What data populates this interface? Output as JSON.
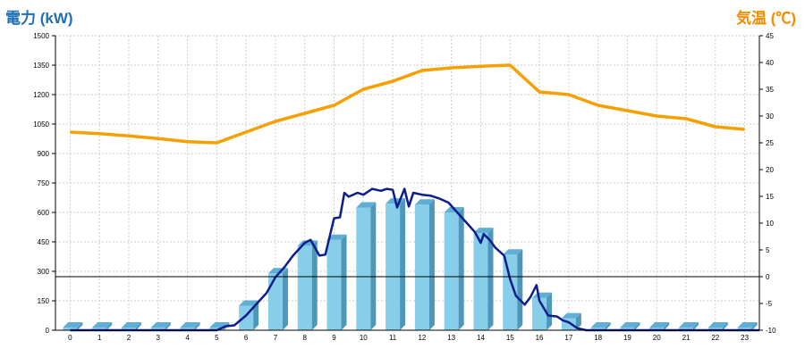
{
  "chart_data": {
    "type": "bar+line",
    "left_axis_title": "電力 (kW)",
    "right_axis_title": "気温 (℃)",
    "x": [
      "0",
      "1",
      "2",
      "3",
      "4",
      "5",
      "6",
      "7",
      "8",
      "9",
      "10",
      "11",
      "12",
      "13",
      "14",
      "15",
      "16",
      "17",
      "18",
      "19",
      "20",
      "21",
      "22",
      "23"
    ],
    "y_left_ticks": [
      "0",
      "150",
      "300",
      "450",
      "600",
      "750",
      "900",
      "1050",
      "1200",
      "1350",
      "1500"
    ],
    "y_right_ticks": [
      "-10",
      "-5",
      "0",
      "5",
      "10",
      "15",
      "20",
      "25",
      "30",
      "35",
      "40",
      "45"
    ],
    "ylim_left": [
      0,
      1500
    ],
    "ylim_right": [
      -10,
      45
    ],
    "grid": true,
    "reference_line_temp": 0,
    "colors": {
      "bar_front": "#87CEEB",
      "bar_side": "#4E97B8",
      "bar_top": "#5FAED6",
      "power_line": "#0B1E8C",
      "temp_line": "#F5A000",
      "left_title": "#1F6FB5",
      "right_title": "#F08C00"
    },
    "series": [
      {
        "type": "bar",
        "axis": "left",
        "values": [
          0,
          0,
          0,
          0,
          0,
          0,
          125,
          290,
          430,
          460,
          625,
          645,
          640,
          600,
          495,
          385,
          165,
          60,
          0,
          0,
          0,
          0,
          0,
          0
        ]
      },
      {
        "type": "line",
        "axis": "left",
        "points": [
          [
            0,
            0
          ],
          [
            1,
            0
          ],
          [
            2,
            0
          ],
          [
            3,
            0
          ],
          [
            4,
            0
          ],
          [
            5,
            0
          ],
          [
            5.3,
            20
          ],
          [
            5.6,
            25
          ],
          [
            6,
            75
          ],
          [
            6.3,
            125
          ],
          [
            6.7,
            190
          ],
          [
            7,
            270
          ],
          [
            7.3,
            320
          ],
          [
            7.6,
            380
          ],
          [
            8,
            445
          ],
          [
            8.2,
            460
          ],
          [
            8.5,
            380
          ],
          [
            8.7,
            385
          ],
          [
            9,
            570
          ],
          [
            9.2,
            575
          ],
          [
            9.35,
            700
          ],
          [
            9.5,
            680
          ],
          [
            9.8,
            700
          ],
          [
            10,
            690
          ],
          [
            10.3,
            720
          ],
          [
            10.6,
            710
          ],
          [
            10.8,
            720
          ],
          [
            11,
            715
          ],
          [
            11.15,
            625
          ],
          [
            11.4,
            720
          ],
          [
            11.55,
            630
          ],
          [
            11.7,
            700
          ],
          [
            12,
            690
          ],
          [
            12.3,
            685
          ],
          [
            12.6,
            670
          ],
          [
            12.9,
            650
          ],
          [
            13.2,
            600
          ],
          [
            13.5,
            550
          ],
          [
            13.8,
            500
          ],
          [
            14,
            445
          ],
          [
            14.1,
            490
          ],
          [
            14.3,
            460
          ],
          [
            14.5,
            420
          ],
          [
            14.8,
            380
          ],
          [
            15,
            260
          ],
          [
            15.2,
            175
          ],
          [
            15.5,
            130
          ],
          [
            15.7,
            170
          ],
          [
            15.9,
            230
          ],
          [
            16,
            150
          ],
          [
            16.3,
            75
          ],
          [
            16.6,
            70
          ],
          [
            16.8,
            50
          ],
          [
            17,
            40
          ],
          [
            17.3,
            10
          ],
          [
            17.6,
            0
          ],
          [
            23.5,
            0
          ]
        ]
      },
      {
        "type": "line",
        "axis": "right",
        "values": [
          27,
          26.7,
          26.3,
          25.8,
          25.2,
          25,
          27,
          29,
          30.5,
          32,
          35,
          36.5,
          38.5,
          39,
          39.3,
          39.5,
          34.5,
          34,
          32,
          31,
          30,
          29.5,
          28,
          27.5
        ]
      }
    ]
  }
}
